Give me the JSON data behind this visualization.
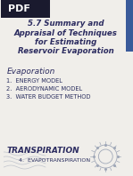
{
  "pdf_label": "PDF",
  "title_line1": "5.7 Summary and",
  "title_line2": "Appraisal of Techniques",
  "title_line3": "for Estimating",
  "title_line4": "Reservoir Evaporation",
  "section_label": "Evaporation",
  "items": [
    "1.  ENERGY MODEL",
    "2.  AERODYNAMIC MODEL",
    "3.  WATER BUDGET METHOD"
  ],
  "bottom_label1": "TRANSPIRATION",
  "bottom_label2": "4.  EVAPOTRANSPIRATION",
  "bg_color": "#f0eeea",
  "header_bg": "#1a1a2e",
  "sidebar_color": "#3a5a9a",
  "title_color": "#2c2c60",
  "pdf_color": "#ffffff",
  "section_color": "#2c2c60",
  "item_color": "#2c3060",
  "transpiration_color": "#2c2c60",
  "evapotranspiration_color": "#2c3060",
  "deco_color": "#a0a8b8"
}
